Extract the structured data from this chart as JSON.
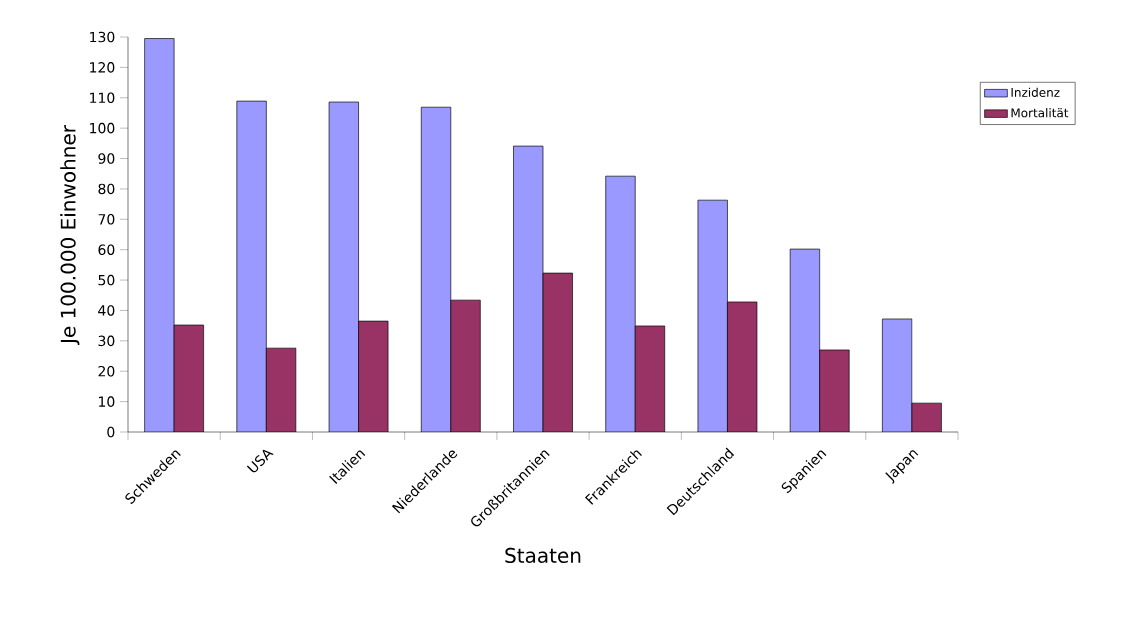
{
  "chart_data": {
    "type": "bar",
    "xlabel": "Staaten",
    "ylabel": "Je 100.000 Einwohner",
    "categories": [
      "Schweden",
      "USA",
      "Italien",
      "Niederlande",
      "Großbritannien",
      "Frankreich",
      "Deutschland",
      "Spanien",
      "Japan"
    ],
    "series": [
      {
        "name": "Inzidenz",
        "color": "#9999ff",
        "values": [
          129.5,
          108.9,
          108.6,
          106.9,
          94.1,
          84.2,
          76.3,
          60.2,
          37.2
        ]
      },
      {
        "name": "Mortalität",
        "color": "#993366",
        "values": [
          35.2,
          27.6,
          36.5,
          43.4,
          52.3,
          34.9,
          42.8,
          27.0,
          9.5
        ]
      }
    ],
    "ylim": [
      0,
      130
    ],
    "yticks": [
      0,
      10,
      20,
      30,
      40,
      50,
      60,
      70,
      80,
      90,
      100,
      110,
      120,
      130
    ],
    "legend": "right"
  }
}
